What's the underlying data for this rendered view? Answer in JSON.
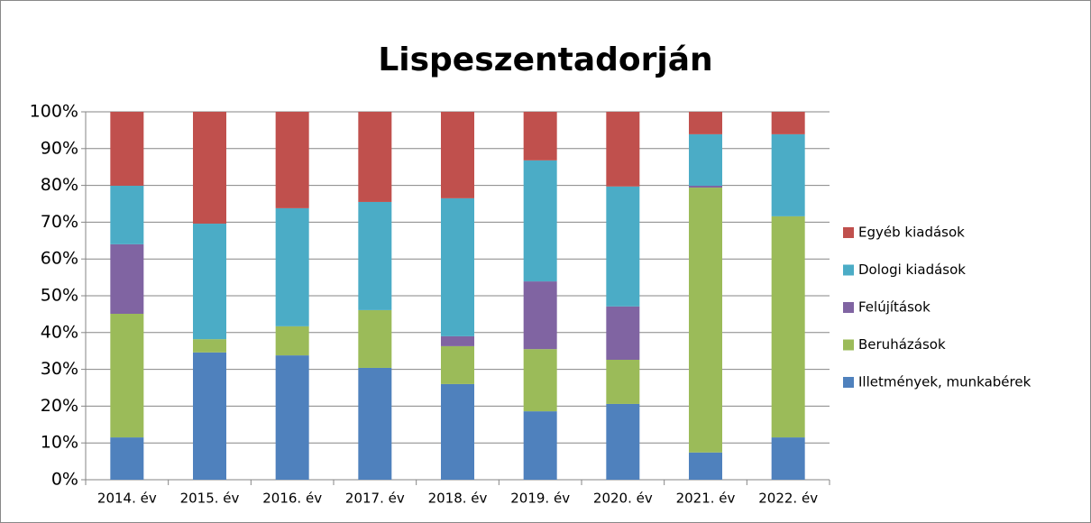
{
  "chart_data": {
    "type": "stacked_bar",
    "title": "Lispeszentadorján",
    "categories": [
      "2014. év",
      "2015. év",
      "2016. év",
      "2017. év",
      "2018. év",
      "2019. év",
      "2020. év",
      "2021. év",
      "2022. év"
    ],
    "series": [
      {
        "name": "Illetmények, munkabérek",
        "color": "#4f81bd",
        "values": [
          11.5,
          34.6,
          33.8,
          30.4,
          26.0,
          18.6,
          20.6,
          7.4,
          11.5
        ]
      },
      {
        "name": "Beruházások",
        "color": "#9bbb59",
        "values": [
          33.6,
          3.6,
          7.9,
          15.7,
          10.3,
          16.9,
          12.0,
          72.0,
          60.1
        ]
      },
      {
        "name": "Felújítások",
        "color": "#8064a2",
        "values": [
          18.9,
          0,
          0,
          0,
          2.7,
          18.4,
          14.5,
          0.5,
          0
        ]
      },
      {
        "name": "Dologi kiadások",
        "color": "#4bacc6",
        "values": [
          15.9,
          31.4,
          32.1,
          29.4,
          37.5,
          32.9,
          32.6,
          14.0,
          22.3
        ]
      },
      {
        "name": "Egyéb kiadások",
        "color": "#c0504d",
        "values": [
          20.1,
          30.4,
          26.2,
          24.5,
          23.5,
          13.2,
          20.3,
          6.1,
          6.1
        ]
      }
    ],
    "ylim": [
      0,
      100
    ],
    "yticks": [
      {
        "value": 0,
        "label": "0%"
      },
      {
        "value": 10,
        "label": "10%"
      },
      {
        "value": 20,
        "label": "20%"
      },
      {
        "value": 30,
        "label": "30%"
      },
      {
        "value": 40,
        "label": "40%"
      },
      {
        "value": 50,
        "label": "50%"
      },
      {
        "value": 60,
        "label": "60%"
      },
      {
        "value": 70,
        "label": "70%"
      },
      {
        "value": 80,
        "label": "80%"
      },
      {
        "value": 90,
        "label": "90%"
      },
      {
        "value": 100,
        "label": "100%"
      }
    ],
    "grid": true,
    "legend": "right"
  }
}
